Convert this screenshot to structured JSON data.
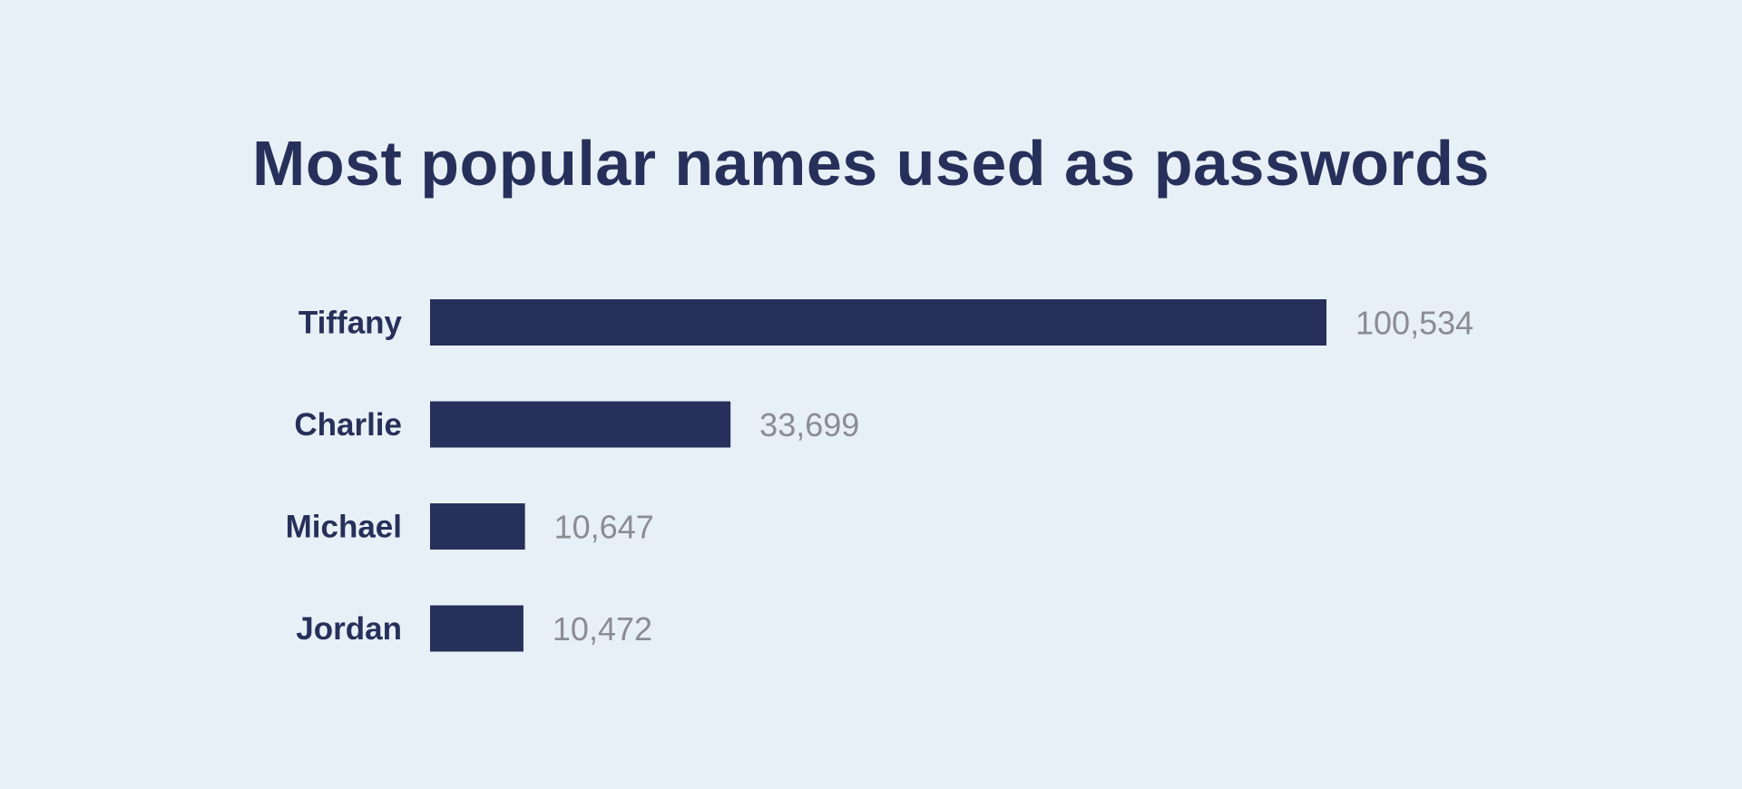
{
  "chart_data": {
    "type": "bar",
    "orientation": "horizontal",
    "title": "Most popular names used as passwords",
    "categories": [
      "Tiffany",
      "Charlie",
      "Michael",
      "Jordan"
    ],
    "values": [
      100534,
      33699,
      10647,
      10472
    ],
    "value_labels": [
      "100,534",
      "33,699",
      "10,647",
      "10,472"
    ],
    "xlim": [
      0,
      100534
    ],
    "grid": false,
    "colors": {
      "background": "#e8f0f7",
      "bar": "#26305a",
      "label": "#26305a",
      "value": "#8a8d92"
    }
  }
}
